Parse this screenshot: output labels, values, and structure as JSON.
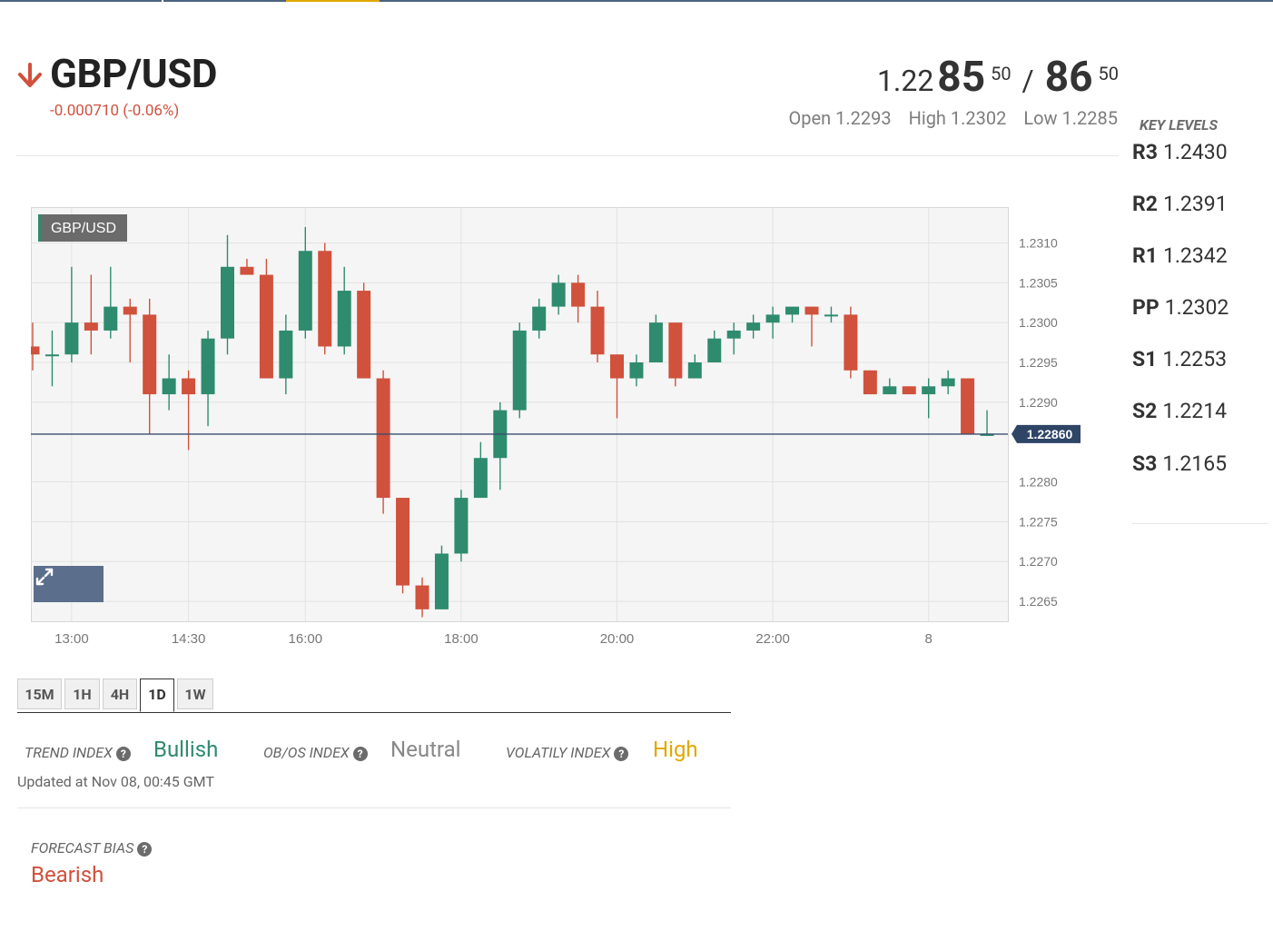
{
  "pair": {
    "name": "GBP/USD",
    "change": "-0.000710 (-0.06%)",
    "direction_icon": "down-arrow-icon",
    "down_color": "#d0513c"
  },
  "price": {
    "bid_prefix": "1.22",
    "bid_big": "85",
    "bid_pip": "50",
    "separator": "/",
    "ask_big": "86",
    "ask_pip": "50"
  },
  "ohl": {
    "open": "Open 1.2293",
    "high": "High 1.2302",
    "low": "Low 1.2285"
  },
  "key_levels": {
    "title": "KEY LEVELS",
    "levels": [
      {
        "label": "R3",
        "value": "1.2430"
      },
      {
        "label": "R2",
        "value": "1.2391"
      },
      {
        "label": "R1",
        "value": "1.2342"
      },
      {
        "label": "PP",
        "value": "1.2302"
      },
      {
        "label": "S1",
        "value": "1.2253"
      },
      {
        "label": "S2",
        "value": "1.2214"
      },
      {
        "label": "S3",
        "value": "1.2165"
      }
    ]
  },
  "chart_data": {
    "type": "candlestick",
    "legend": "GBP/USD",
    "current_price_label": "1.22860",
    "current_price": 1.2286,
    "ylim": [
      1.22625,
      1.23145
    ],
    "yticks": [
      "1.2310",
      "1.2305",
      "1.2300",
      "1.2295",
      "1.2290",
      "1.2280",
      "1.2275",
      "1.2270",
      "1.2265"
    ],
    "xticks": [
      "13:00",
      "14:30",
      "16:00",
      "18:00",
      "20:00",
      "22:00",
      "8"
    ],
    "up_color": "#2e8b6e",
    "down_color": "#d0513c",
    "grid": true,
    "candles": [
      {
        "o": 1.2297,
        "h": 1.23,
        "l": 1.2294,
        "c": 1.2296
      },
      {
        "o": 1.2296,
        "h": 1.2299,
        "l": 1.2292,
        "c": 1.2296
      },
      {
        "o": 1.2296,
        "h": 1.2307,
        "l": 1.2295,
        "c": 1.23
      },
      {
        "o": 1.23,
        "h": 1.2306,
        "l": 1.2296,
        "c": 1.2299
      },
      {
        "o": 1.2299,
        "h": 1.2307,
        "l": 1.2298,
        "c": 1.2302
      },
      {
        "o": 1.2302,
        "h": 1.2303,
        "l": 1.2295,
        "c": 1.2301
      },
      {
        "o": 1.2301,
        "h": 1.2303,
        "l": 1.2286,
        "c": 1.2291
      },
      {
        "o": 1.2291,
        "h": 1.2296,
        "l": 1.2289,
        "c": 1.2293
      },
      {
        "o": 1.2293,
        "h": 1.2294,
        "l": 1.2284,
        "c": 1.2291
      },
      {
        "o": 1.2291,
        "h": 1.2299,
        "l": 1.2287,
        "c": 1.2298
      },
      {
        "o": 1.2298,
        "h": 1.2311,
        "l": 1.2296,
        "c": 1.2307
      },
      {
        "o": 1.2307,
        "h": 1.2308,
        "l": 1.2306,
        "c": 1.2306
      },
      {
        "o": 1.2306,
        "h": 1.2308,
        "l": 1.2293,
        "c": 1.2293
      },
      {
        "o": 1.2293,
        "h": 1.2301,
        "l": 1.2291,
        "c": 1.2299
      },
      {
        "o": 1.2299,
        "h": 1.2312,
        "l": 1.2298,
        "c": 1.2309
      },
      {
        "o": 1.2309,
        "h": 1.231,
        "l": 1.2296,
        "c": 1.2297
      },
      {
        "o": 1.2297,
        "h": 1.2307,
        "l": 1.2296,
        "c": 1.2304
      },
      {
        "o": 1.2304,
        "h": 1.2305,
        "l": 1.2293,
        "c": 1.2293
      },
      {
        "o": 1.2293,
        "h": 1.2294,
        "l": 1.2276,
        "c": 1.2278
      },
      {
        "o": 1.2278,
        "h": 1.2278,
        "l": 1.2266,
        "c": 1.2267
      },
      {
        "o": 1.2267,
        "h": 1.2268,
        "l": 1.2263,
        "c": 1.2264
      },
      {
        "o": 1.2264,
        "h": 1.2272,
        "l": 1.2264,
        "c": 1.2271
      },
      {
        "o": 1.2271,
        "h": 1.2279,
        "l": 1.227,
        "c": 1.2278
      },
      {
        "o": 1.2278,
        "h": 1.2285,
        "l": 1.2278,
        "c": 1.2283
      },
      {
        "o": 1.2283,
        "h": 1.229,
        "l": 1.2279,
        "c": 1.2289
      },
      {
        "o": 1.2289,
        "h": 1.23,
        "l": 1.2288,
        "c": 1.2299
      },
      {
        "o": 1.2299,
        "h": 1.2303,
        "l": 1.2298,
        "c": 1.2302
      },
      {
        "o": 1.2302,
        "h": 1.2306,
        "l": 1.2301,
        "c": 1.2305
      },
      {
        "o": 1.2305,
        "h": 1.2306,
        "l": 1.23,
        "c": 1.2302
      },
      {
        "o": 1.2302,
        "h": 1.2304,
        "l": 1.2295,
        "c": 1.2296
      },
      {
        "o": 1.2296,
        "h": 1.2296,
        "l": 1.2288,
        "c": 1.2293
      },
      {
        "o": 1.2293,
        "h": 1.2296,
        "l": 1.2292,
        "c": 1.2295
      },
      {
        "o": 1.2295,
        "h": 1.2301,
        "l": 1.2295,
        "c": 1.23
      },
      {
        "o": 1.23,
        "h": 1.23,
        "l": 1.2292,
        "c": 1.2293
      },
      {
        "o": 1.2293,
        "h": 1.2296,
        "l": 1.2293,
        "c": 1.2295
      },
      {
        "o": 1.2295,
        "h": 1.2299,
        "l": 1.2295,
        "c": 1.2298
      },
      {
        "o": 1.2298,
        "h": 1.23,
        "l": 1.2296,
        "c": 1.2299
      },
      {
        "o": 1.2299,
        "h": 1.2301,
        "l": 1.2298,
        "c": 1.23
      },
      {
        "o": 1.23,
        "h": 1.2302,
        "l": 1.2298,
        "c": 1.2301
      },
      {
        "o": 1.2301,
        "h": 1.2302,
        "l": 1.23,
        "c": 1.2302
      },
      {
        "o": 1.2302,
        "h": 1.2302,
        "l": 1.2297,
        "c": 1.2301
      },
      {
        "o": 1.2301,
        "h": 1.2302,
        "l": 1.23,
        "c": 1.2301
      },
      {
        "o": 1.2301,
        "h": 1.2302,
        "l": 1.2293,
        "c": 1.2294
      },
      {
        "o": 1.2294,
        "h": 1.2294,
        "l": 1.2291,
        "c": 1.2291
      },
      {
        "o": 1.2291,
        "h": 1.2293,
        "l": 1.2291,
        "c": 1.2292
      },
      {
        "o": 1.2292,
        "h": 1.2292,
        "l": 1.2291,
        "c": 1.2291
      },
      {
        "o": 1.2291,
        "h": 1.2293,
        "l": 1.2288,
        "c": 1.2292
      },
      {
        "o": 1.2292,
        "h": 1.2294,
        "l": 1.2291,
        "c": 1.2293
      },
      {
        "o": 1.2293,
        "h": 1.2293,
        "l": 1.2286,
        "c": 1.2286
      },
      {
        "o": 1.2286,
        "h": 1.2289,
        "l": 1.2286,
        "c": 1.2286
      }
    ]
  },
  "timeframes": {
    "items": [
      "15M",
      "1H",
      "4H",
      "1D",
      "1W"
    ],
    "active": "1D"
  },
  "indices": {
    "trend_label": "TREND INDEX",
    "trend_value": "Bullish",
    "trend_color": "#2e8b6e",
    "obos_label": "OB/OS INDEX",
    "obos_value": "Neutral",
    "obos_color": "#888888",
    "volatility_label": "VOLATILY INDEX",
    "volatility_value": "High",
    "volatility_color": "#e0a800",
    "help_icon": "question-circle-icon",
    "help_glyph": "?",
    "updated": "Updated at Nov 08, 00:45 GMT"
  },
  "forecast": {
    "label": "FORECAST BIAS",
    "value": "Bearish",
    "color": "#d0513c"
  }
}
